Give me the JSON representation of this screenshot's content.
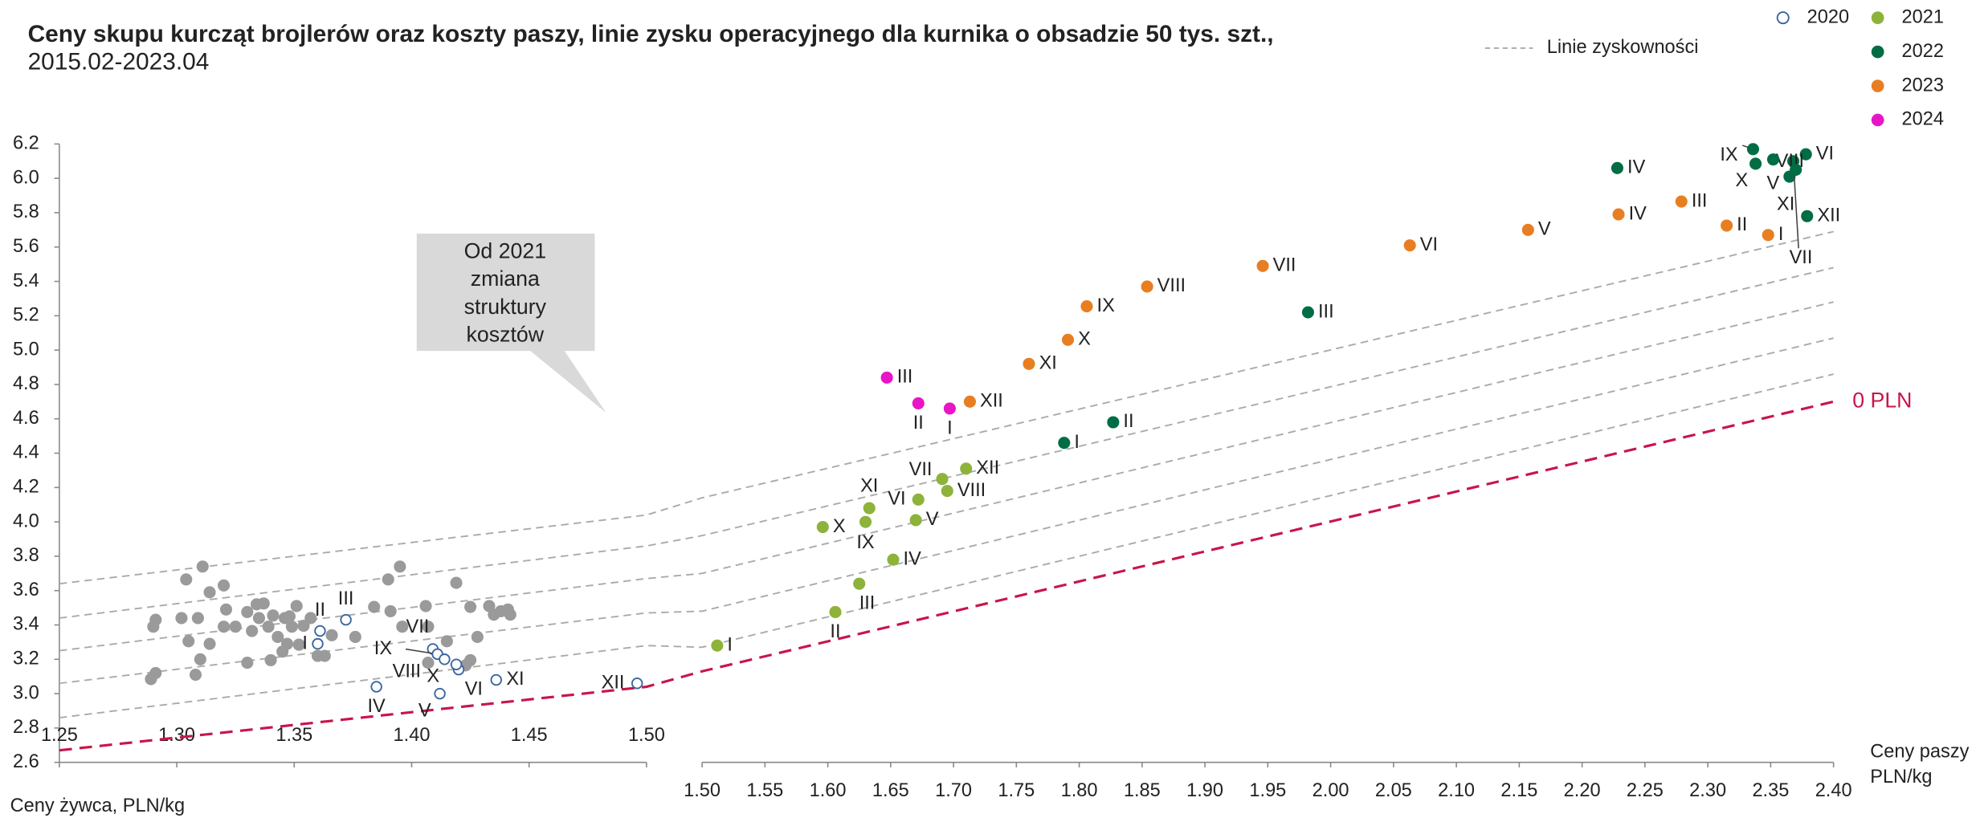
{
  "chart_data": {
    "type": "scatter",
    "title": "Ceny skupu kurcząt brojlerów oraz koszty paszy, linie zysku operacyjnego dla kurnika o obsadzie 50 tys. szt.,",
    "subtitle": "2015.02-2023.04",
    "ylim": [
      2.6,
      6.2
    ],
    "yticks": [
      2.6,
      2.8,
      {
        "value": 3,
        "label": "3.0"
      },
      3.2,
      3.4,
      3.6,
      3.8,
      {
        "value": 4,
        "label": "4.0"
      },
      4.2,
      4.4,
      4.6,
      4.8,
      {
        "value": 5,
        "label": "5.0"
      },
      5.2,
      5.4,
      5.6,
      5.8,
      {
        "value": 6,
        "label": "6.0"
      },
      6.2
    ],
    "x_axes": [
      {
        "xlim": [
          1.25,
          1.5
        ],
        "xticks": [
          1.25,
          {
            "value": 1.3,
            "label": "1.30"
          },
          1.35,
          {
            "value": 1.4,
            "label": "1.40"
          },
          1.45,
          {
            "value": 1.5,
            "label": "1.50"
          }
        ],
        "label": [
          "Ceny żywca, PLN/kg"
        ]
      },
      {
        "xlim": [
          1.5,
          2.4
        ],
        "xticks": [
          {
            "value": 1.5,
            "label": "1.50"
          },
          1.55,
          {
            "value": 1.6,
            "label": "1.60"
          },
          1.65,
          {
            "value": 1.7,
            "label": "1.70"
          },
          1.75,
          {
            "value": 1.8,
            "label": "1.80"
          },
          1.85,
          {
            "value": 1.9,
            "label": "1.90"
          },
          1.95,
          {
            "value": 2,
            "label": "2.00"
          },
          2.05,
          {
            "value": 2.1,
            "label": "2.10"
          },
          2.15,
          {
            "value": 2.2,
            "label": "2.20"
          },
          2.25,
          {
            "value": 2.3,
            "label": "2.30"
          },
          2.35,
          {
            "value": 2.4,
            "label": "2.40"
          }
        ],
        "label": [
          "Ceny paszy",
          "PLN/kg"
        ]
      }
    ],
    "series": [
      {
        "color": "#9a9a9a",
        "marker": "filled",
        "x": [
          1.289,
          1.291,
          1.29,
          1.291,
          1.304,
          1.311,
          1.314,
          1.32,
          1.302,
          1.309,
          1.31,
          1.308,
          1.314,
          1.305,
          1.321,
          1.32,
          1.325,
          1.33,
          1.33,
          1.332,
          1.335,
          1.334,
          1.337,
          1.339,
          1.341,
          1.343,
          1.34,
          1.346,
          1.349,
          1.347,
          1.351,
          1.354,
          1.348,
          1.357,
          1.36,
          1.363,
          1.366,
          1.376,
          1.384,
          1.39,
          1.395,
          1.391,
          1.396,
          1.406,
          1.407,
          1.407,
          1.415,
          1.419,
          1.425,
          1.423,
          1.425,
          1.433,
          1.435,
          1.438,
          1.441,
          1.442,
          1.428,
          1.352,
          1.345
        ],
        "values": [
          3.085,
          3.12,
          3.39,
          3.43,
          3.665,
          3.74,
          3.59,
          3.63,
          3.44,
          3.44,
          3.2,
          3.11,
          3.29,
          3.305,
          3.49,
          3.39,
          3.39,
          3.475,
          3.18,
          3.365,
          3.44,
          3.52,
          3.525,
          3.39,
          3.455,
          3.33,
          3.195,
          3.44,
          3.39,
          3.29,
          3.51,
          3.395,
          3.45,
          3.44,
          3.22,
          3.22,
          3.34,
          3.33,
          3.505,
          3.665,
          3.74,
          3.48,
          3.39,
          3.51,
          3.39,
          3.18,
          3.305,
          3.645,
          3.195,
          3.165,
          3.505,
          3.51,
          3.46,
          3.48,
          3.49,
          3.46,
          3.33,
          3.285,
          3.245
        ]
      },
      {
        "name": "2020",
        "color": "#3a66a0",
        "marker": "open",
        "x": [
          1.36,
          1.361,
          1.372,
          1.385,
          1.412,
          1.42,
          1.409,
          1.419,
          1.411,
          1.414,
          1.436,
          1.496
        ],
        "values": [
          3.29,
          3.365,
          3.43,
          3.04,
          3.0,
          3.14,
          3.26,
          3.17,
          3.23,
          3.2,
          3.08,
          3.06
        ],
        "labels": [
          "I",
          "II",
          "III",
          "IV",
          "V",
          "VI",
          "VII",
          "VIII",
          "IX",
          "X",
          "XI",
          "XII"
        ]
      },
      {
        "name": "2021",
        "color": "#8db33a",
        "marker": "filled",
        "x": [
          1.512,
          1.606,
          1.625,
          1.652,
          1.67,
          1.672,
          1.691,
          1.695,
          1.63,
          1.596,
          1.633,
          1.71
        ],
        "values": [
          3.28,
          3.475,
          3.64,
          3.78,
          4.01,
          4.13,
          4.25,
          4.18,
          4.0,
          3.97,
          4.08,
          4.31
        ],
        "labels": [
          "I",
          "II",
          "III",
          "IV",
          "V",
          "VI",
          "VII",
          "VIII",
          "IX",
          "X",
          "XI",
          "XII"
        ]
      },
      {
        "name": "2022",
        "color": "#006d44",
        "marker": "filled",
        "x": [
          1.788,
          1.827,
          1.982,
          2.228,
          2.365,
          2.378,
          2.368,
          2.352,
          2.336,
          2.338,
          2.37,
          2.379
        ],
        "values": [
          4.46,
          4.58,
          5.22,
          6.06,
          6.01,
          6.14,
          6.1,
          6.11,
          6.17,
          6.085,
          6.05,
          5.78
        ],
        "labels": [
          "I",
          "II",
          "III",
          "IV",
          "V",
          "VI",
          "VII",
          "VIII",
          "IX",
          "X",
          "XI",
          "XII"
        ]
      },
      {
        "name": "2023",
        "color": "#e87e22",
        "marker": "filled",
        "x": [
          2.348,
          2.315,
          2.279,
          2.229,
          2.157,
          2.063,
          1.946,
          1.854,
          1.806,
          1.791,
          1.76,
          1.713
        ],
        "values": [
          5.67,
          5.725,
          5.865,
          5.79,
          5.7,
          5.61,
          5.49,
          5.37,
          5.255,
          5.06,
          4.92,
          4.7
        ],
        "labels": [
          "I",
          "II",
          "III",
          "IV",
          "V",
          "VI",
          "VII",
          "VIII",
          "IX",
          "X",
          "XI",
          "XII"
        ]
      },
      {
        "name": "2024",
        "color": "#e815c8",
        "marker": "filled",
        "x": [
          1.697,
          1.672,
          1.647
        ],
        "values": [
          4.66,
          4.69,
          4.84
        ],
        "labels": [
          "I",
          "II",
          "III"
        ]
      }
    ],
    "profit_lines": {
      "name": "Linie zyskowności",
      "color": "#aaaaaa",
      "lines": [
        {
          "values": [
            2.86,
            3.28,
            3.27,
            4.86
          ]
        },
        {
          "values": [
            3.06,
            3.47,
            3.48,
            5.07
          ]
        },
        {
          "values": [
            3.25,
            3.67,
            3.7,
            5.28
          ]
        },
        {
          "values": [
            3.44,
            3.86,
            3.92,
            5.48
          ]
        },
        {
          "values": [
            3.64,
            4.04,
            4.14,
            5.69
          ]
        }
      ]
    },
    "zero_line": {
      "name": "0 PLN",
      "color": "#c8154a",
      "values": [
        2.67,
        3.04,
        3.13,
        4.7
      ]
    },
    "callout": [
      "Od 2021",
      "zmiana",
      "struktury",
      "kosztów"
    ],
    "legend": true
  }
}
